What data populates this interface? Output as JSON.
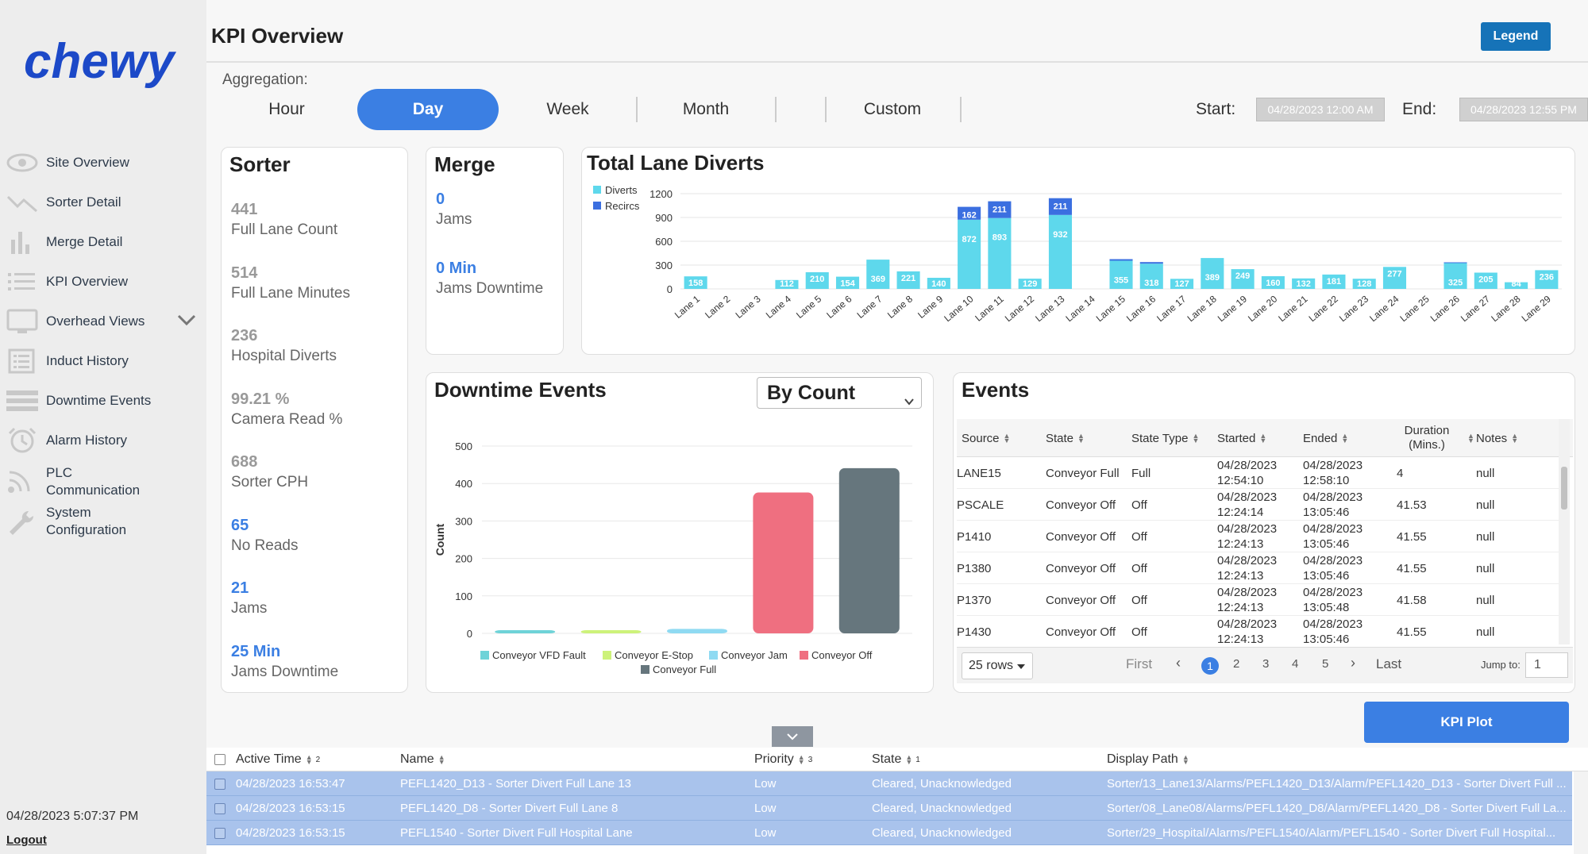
{
  "brand": {
    "logo_text": "chewy",
    "color": "#1c49c8"
  },
  "sidebar": {
    "items": [
      {
        "label": "Site Overview",
        "icon": "eye-icon"
      },
      {
        "label": "Sorter Detail",
        "icon": "trend-icon"
      },
      {
        "label": "Merge Detail",
        "icon": "bar-chart-icon"
      },
      {
        "label": "KPI Overview",
        "icon": "list-icon"
      },
      {
        "label": "Overhead Views",
        "icon": "monitor-icon"
      },
      {
        "label": "Induct History",
        "icon": "document-list-icon"
      },
      {
        "label": "Downtime Events",
        "icon": "stack-icon"
      },
      {
        "label": "Alarm History",
        "icon": "alarm-clock-icon"
      },
      {
        "label": "PLC Communication",
        "icon": "wifi-icon"
      },
      {
        "label": "System Configuration",
        "icon": "wrench-icon"
      }
    ],
    "datetime": "04/28/2023 5:07:37 PM",
    "logout": "Logout"
  },
  "header": {
    "title": "KPI Overview",
    "legend_button": "Legend"
  },
  "aggregation": {
    "label": "Aggregation:",
    "tabs": [
      "Hour",
      "Day",
      "Week",
      "Month",
      "",
      "Custom"
    ],
    "active": "Day",
    "start_label": "Start:",
    "start_value": "04/28/2023 12:00 AM",
    "end_label": "End:",
    "end_value": "04/28/2023 12:55 PM"
  },
  "sorter": {
    "title": "Sorter",
    "metrics": [
      {
        "value": "441",
        "label": "Full Lane Count"
      },
      {
        "value": "514",
        "label": "Full Lane Minutes"
      },
      {
        "value": "236",
        "label": "Hospital Diverts"
      },
      {
        "value": "99.21 %",
        "label": "Camera Read %"
      },
      {
        "value": "688",
        "label": "Sorter CPH"
      },
      {
        "value": "65",
        "label": "No Reads"
      },
      {
        "value": "21",
        "label": "Jams"
      },
      {
        "value": "25 Min",
        "label": "Jams Downtime"
      }
    ]
  },
  "merge": {
    "title": "Merge",
    "metrics": [
      {
        "value": "0",
        "label": "Jams"
      },
      {
        "value": "0 Min",
        "label": "Jams Downtime"
      }
    ]
  },
  "downtime_title": "Downtime Events",
  "downtime_select": "By Count",
  "events": {
    "title": "Events",
    "columns": [
      "Source",
      "State",
      "State Type",
      "Started",
      "Ended",
      "Duration (Mins.)",
      "Notes"
    ],
    "rows": [
      [
        "LANE15",
        "Conveyor Full",
        "Full",
        "04/28/2023 12:54:10",
        "04/28/2023 12:58:10",
        "4",
        "null"
      ],
      [
        "PSCALE",
        "Conveyor Off",
        "Off",
        "04/28/2023 12:24:14",
        "04/28/2023 13:05:46",
        "41.53",
        "null"
      ],
      [
        "P1410",
        "Conveyor Off",
        "Off",
        "04/28/2023 12:24:13",
        "04/28/2023 13:05:46",
        "41.55",
        "null"
      ],
      [
        "P1380",
        "Conveyor Off",
        "Off",
        "04/28/2023 12:24:13",
        "04/28/2023 13:05:46",
        "41.55",
        "null"
      ],
      [
        "P1370",
        "Conveyor Off",
        "Off",
        "04/28/2023 12:24:13",
        "04/28/2023 13:05:48",
        "41.58",
        "null"
      ],
      [
        "P1430",
        "Conveyor Off",
        "Off",
        "04/28/2023 12:24:13",
        "04/28/2023 13:05:46",
        "41.55",
        "null"
      ]
    ],
    "pager": {
      "rows": "25 rows",
      "first": "First",
      "prev": "‹",
      "pages": [
        "1",
        "2",
        "3",
        "4",
        "5"
      ],
      "next": "›",
      "last": "Last",
      "jump_label": "Jump to:",
      "jump_value": "1"
    }
  },
  "kpi_plot_button": "KPI Plot",
  "alarms": {
    "columns": [
      {
        "label": "Active Time",
        "sort_index": "2"
      },
      {
        "label": "Name",
        "sort_index": ""
      },
      {
        "label": "Priority",
        "sort_index": "3"
      },
      {
        "label": "State",
        "sort_index": "1"
      },
      {
        "label": "Display Path",
        "sort_index": ""
      }
    ],
    "rows": [
      [
        "04/28/2023 16:53:47",
        "PEFL1420_D13 - Sorter Divert Full Lane 13",
        "Low",
        "Cleared, Unacknowledged",
        "Sorter/13_Lane13/Alarms/PEFL1420_D13/Alarm/PEFL1420_D13 - Sorter Divert Full ..."
      ],
      [
        "04/28/2023 16:53:15",
        "PEFL1420_D8 - Sorter Divert Full Lane 8",
        "Low",
        "Cleared, Unacknowledged",
        "Sorter/08_Lane08/Alarms/PEFL1420_D8/Alarm/PEFL1420_D8 - Sorter Divert Full La..."
      ],
      [
        "04/28/2023 16:53:15",
        "PEFL1540 - Sorter Divert Full Hospital Lane",
        "Low",
        "Cleared, Unacknowledged",
        "Sorter/29_Hospital/Alarms/PEFL1540/Alarm/PEFL1540 - Sorter Divert Full Hospital..."
      ]
    ]
  },
  "chart_data": [
    {
      "type": "bar",
      "title": "Total Lane Diverts",
      "stacked": true,
      "categories": [
        "Lane 1",
        "Lane 2",
        "Lane 3",
        "Lane 4",
        "Lane 5",
        "Lane 6",
        "Lane 7",
        "Lane 8",
        "Lane 9",
        "Lane 10",
        "Lane 11",
        "Lane 12",
        "Lane 13",
        "Lane 14",
        "Lane 15",
        "Lane 16",
        "Lane 17",
        "Lane 18",
        "Lane 19",
        "Lane 20",
        "Lane 21",
        "Lane 22",
        "Lane 23",
        "Lane 24",
        "Lane 25",
        "Lane 26",
        "Lane 27",
        "Lane 28",
        "Lane 29"
      ],
      "series": [
        {
          "name": "Diverts",
          "color": "#5ed8ec",
          "values": [
            158,
            0,
            0,
            112,
            210,
            154,
            369,
            221,
            140,
            872,
            893,
            129,
            932,
            0,
            355,
            318,
            127,
            389,
            249,
            160,
            132,
            181,
            128,
            277,
            0,
            325,
            205,
            84,
            236
          ]
        },
        {
          "name": "Recircs",
          "color": "#3b6fe0",
          "values": [
            0,
            0,
            0,
            0,
            0,
            0,
            0,
            0,
            0,
            162,
            211,
            0,
            211,
            0,
            20,
            20,
            0,
            0,
            0,
            0,
            0,
            0,
            0,
            0,
            0,
            10,
            0,
            0,
            0
          ]
        }
      ],
      "ylim": [
        0,
        1200
      ],
      "yticks": [
        0,
        300,
        600,
        900,
        1200
      ],
      "legend": "top-left"
    },
    {
      "type": "bar",
      "title": "Downtime Events",
      "categories": [
        "Conveyor VFD Fault",
        "Conveyor E-Stop",
        "Conveyor Jam",
        "Conveyor Off",
        "Conveyor Full"
      ],
      "values": [
        4,
        5,
        12,
        376,
        441
      ],
      "colors": [
        "#6ed3d8",
        "#cdf27a",
        "#8fdaf2",
        "#ef6f80",
        "#66767d"
      ],
      "ylabel": "Count",
      "ylim": [
        0,
        500
      ],
      "yticks": [
        0,
        100,
        200,
        300,
        400,
        500
      ],
      "legend": "bottom"
    }
  ]
}
